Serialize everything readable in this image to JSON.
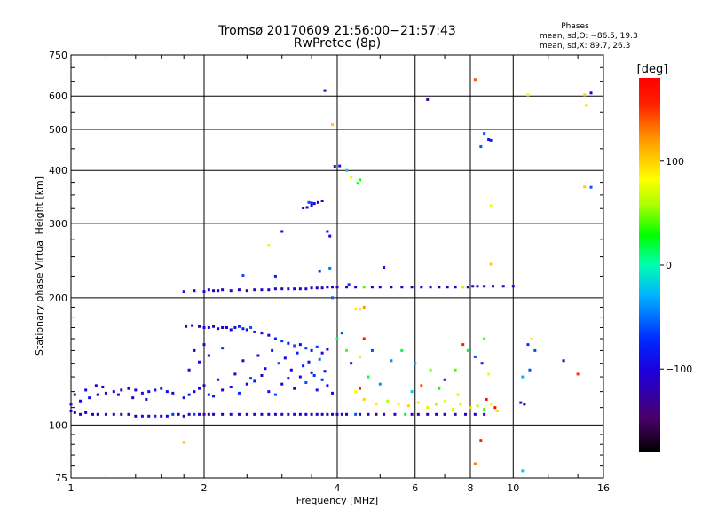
{
  "title_line1": "Tromsø 20170609 21:56:00−21:57:43",
  "title_line2": "RwPretec (8p)",
  "phases": {
    "title": "Phases",
    "line1": "mean, sd,O: −86.5, 19.3",
    "line2": "mean, sd,X:  89.7, 26.3"
  },
  "colorbar": {
    "unit_label": "[deg]",
    "ticks": [
      {
        "value": 100,
        "label": "100"
      },
      {
        "value": 0,
        "label": "0"
      },
      {
        "value": -100,
        "label": "−100"
      }
    ],
    "range": [
      -180,
      180
    ]
  },
  "chart_data": {
    "type": "scatter",
    "title": "Tromsø 20170609 21:56:00−21:57:43",
    "subtitle": "RwPretec (8p)",
    "xlabel": "Frequency [MHz]",
    "ylabel": "Stationary phase Virtual Height [km]",
    "xscale": "log",
    "yscale": "log",
    "xlim": [
      1,
      16
    ],
    "ylim": [
      75,
      750
    ],
    "xticks": [
      {
        "value": 1,
        "label": "1"
      },
      {
        "value": 2,
        "label": "2"
      },
      {
        "value": 4,
        "label": "4"
      },
      {
        "value": 6,
        "label": "6"
      },
      {
        "value": 8,
        "label": "8"
      },
      {
        "value": 10,
        "label": "10"
      },
      {
        "value": 16,
        "label": "16"
      }
    ],
    "yticks": [
      {
        "value": 75,
        "label": "75"
      },
      {
        "value": 100,
        "label": "100"
      },
      {
        "value": 200,
        "label": "200"
      },
      {
        "value": 300,
        "label": "300"
      },
      {
        "value": 400,
        "label": "400"
      },
      {
        "value": 500,
        "label": "500"
      },
      {
        "value": 600,
        "label": "600"
      },
      {
        "value": 750,
        "label": "750"
      }
    ],
    "grid": true,
    "color_variable": "phase [deg]",
    "points": [
      [
        1.0,
        108,
        -115
      ],
      [
        1.02,
        107,
        -118
      ],
      [
        1.05,
        106,
        -120
      ],
      [
        1.08,
        107,
        -110
      ],
      [
        1.12,
        106,
        -115
      ],
      [
        1.15,
        106,
        -118
      ],
      [
        1.2,
        106,
        -112
      ],
      [
        1.25,
        106,
        -120
      ],
      [
        1.3,
        106,
        -108
      ],
      [
        1.35,
        106,
        -115
      ],
      [
        1.4,
        105,
        -118
      ],
      [
        1.45,
        105,
        -90
      ],
      [
        1.5,
        105,
        -110
      ],
      [
        1.55,
        105,
        -75
      ],
      [
        1.6,
        105,
        -112
      ],
      [
        1.65,
        105,
        -100
      ],
      [
        1.7,
        106,
        -70
      ],
      [
        1.75,
        106,
        -120
      ],
      [
        1.8,
        105,
        -115
      ],
      [
        1.85,
        106,
        -110
      ],
      [
        1.9,
        106,
        -60
      ],
      [
        1.95,
        106,
        -118
      ],
      [
        2.0,
        106,
        -112
      ],
      [
        2.05,
        106,
        -120
      ],
      [
        2.1,
        106,
        -110
      ],
      [
        2.2,
        106,
        -116
      ],
      [
        2.3,
        106,
        -112
      ],
      [
        2.4,
        106,
        -120
      ],
      [
        2.5,
        106,
        -108
      ],
      [
        2.6,
        106,
        -115
      ],
      [
        2.7,
        106,
        -118
      ],
      [
        2.8,
        106,
        -110
      ],
      [
        2.9,
        106,
        -115
      ],
      [
        3.0,
        106,
        -112
      ],
      [
        3.1,
        106,
        -120
      ],
      [
        3.2,
        106,
        -108
      ],
      [
        3.3,
        106,
        -116
      ],
      [
        3.4,
        106,
        -110
      ],
      [
        3.5,
        106,
        -118
      ],
      [
        3.6,
        106,
        -112
      ],
      [
        3.7,
        106,
        -115
      ],
      [
        3.8,
        106,
        -140
      ],
      [
        3.9,
        106,
        -108
      ],
      [
        4.0,
        106,
        -118
      ],
      [
        4.1,
        106,
        -112
      ],
      [
        4.2,
        106,
        -116
      ],
      [
        4.4,
        106,
        -60
      ],
      [
        4.5,
        106,
        -120
      ],
      [
        4.7,
        106,
        -110
      ],
      [
        4.9,
        106,
        -150
      ],
      [
        5.1,
        106,
        -115
      ],
      [
        5.4,
        106,
        -110
      ],
      [
        5.7,
        106,
        20
      ],
      [
        5.9,
        106,
        -118
      ],
      [
        6.1,
        106,
        -112
      ],
      [
        6.4,
        106,
        -116
      ],
      [
        6.7,
        106,
        -110
      ],
      [
        7.0,
        106,
        -118
      ],
      [
        7.4,
        106,
        -112
      ],
      [
        7.8,
        106,
        -116
      ],
      [
        8.2,
        106,
        -110
      ],
      [
        8.6,
        106,
        -118
      ],
      [
        1.0,
        112,
        -95
      ],
      [
        1.05,
        114,
        -100
      ],
      [
        1.1,
        116,
        -85
      ],
      [
        1.15,
        118,
        -110
      ],
      [
        1.2,
        119,
        -105
      ],
      [
        1.25,
        120,
        -100
      ],
      [
        1.3,
        121,
        -95
      ],
      [
        1.35,
        122,
        -108
      ],
      [
        1.4,
        121,
        -100
      ],
      [
        1.45,
        119,
        -90
      ],
      [
        1.5,
        120,
        -105
      ],
      [
        1.55,
        121,
        -80
      ],
      [
        1.6,
        122,
        -70
      ],
      [
        1.65,
        120,
        -95
      ],
      [
        1.7,
        119,
        -100
      ],
      [
        1.02,
        118,
        -105
      ],
      [
        1.08,
        121,
        -98
      ],
      [
        1.14,
        124,
        -110
      ],
      [
        1.18,
        123,
        -115
      ],
      [
        1.28,
        118,
        -108
      ],
      [
        1.38,
        116,
        -102
      ],
      [
        1.48,
        115,
        -110
      ],
      [
        1.8,
        116,
        -90
      ],
      [
        1.85,
        118,
        -80
      ],
      [
        1.9,
        120,
        -100
      ],
      [
        1.95,
        122,
        -95
      ],
      [
        2.0,
        124,
        -110
      ],
      [
        2.05,
        118,
        -75
      ],
      [
        2.1,
        117,
        -88
      ],
      [
        2.2,
        121,
        -102
      ],
      [
        2.3,
        123,
        -95
      ],
      [
        2.4,
        119,
        -70
      ],
      [
        2.5,
        125,
        -100
      ],
      [
        2.6,
        127,
        -80
      ],
      [
        2.7,
        131,
        -112
      ],
      [
        2.8,
        120,
        -95
      ],
      [
        2.9,
        118,
        -60
      ],
      [
        3.0,
        125,
        -100
      ],
      [
        3.1,
        129,
        -85
      ],
      [
        3.2,
        122,
        -110
      ],
      [
        3.3,
        130,
        -95
      ],
      [
        3.4,
        126,
        -60
      ],
      [
        3.5,
        133,
        -100
      ],
      [
        3.6,
        121,
        -88
      ],
      [
        3.7,
        128,
        -70
      ],
      [
        3.8,
        124,
        -105
      ],
      [
        3.9,
        119,
        -92
      ],
      [
        2.15,
        128,
        -80
      ],
      [
        2.35,
        132,
        -100
      ],
      [
        2.55,
        129,
        -65
      ],
      [
        2.75,
        136,
        -95
      ],
      [
        2.95,
        140,
        -60
      ],
      [
        3.15,
        135,
        -100
      ],
      [
        3.35,
        138,
        -85
      ],
      [
        3.55,
        131,
        -70
      ],
      [
        3.75,
        134,
        -100
      ],
      [
        2.45,
        142,
        -110
      ],
      [
        2.65,
        146,
        -90
      ],
      [
        2.85,
        150,
        -80
      ],
      [
        3.05,
        144,
        -100
      ],
      [
        3.25,
        148,
        -75
      ],
      [
        3.45,
        141,
        -95
      ],
      [
        3.65,
        143,
        -50
      ],
      [
        1.85,
        135,
        -100
      ],
      [
        1.95,
        141,
        -90
      ],
      [
        2.05,
        146,
        -110
      ],
      [
        1.9,
        150,
        -105
      ],
      [
        2.0,
        155,
        -95
      ],
      [
        2.2,
        152,
        -70
      ],
      [
        1.82,
        171,
        -115
      ],
      [
        1.88,
        172,
        -110
      ],
      [
        1.95,
        171,
        -118
      ],
      [
        2.0,
        170,
        -100
      ],
      [
        2.05,
        170,
        -112
      ],
      [
        2.1,
        171,
        -120
      ],
      [
        2.15,
        169,
        -108
      ],
      [
        2.2,
        170,
        -115
      ],
      [
        2.25,
        170,
        -110
      ],
      [
        2.3,
        168,
        -100
      ],
      [
        2.35,
        170,
        -90
      ],
      [
        2.4,
        171,
        -70
      ],
      [
        2.45,
        169,
        -80
      ],
      [
        2.5,
        168,
        -95
      ],
      [
        2.55,
        170,
        -60
      ],
      [
        2.6,
        166,
        -75
      ],
      [
        2.7,
        165,
        -85
      ],
      [
        2.8,
        163,
        -100
      ],
      [
        2.9,
        160,
        -80
      ],
      [
        3.0,
        158,
        -70
      ],
      [
        3.1,
        156,
        -90
      ],
      [
        3.2,
        154,
        -60
      ],
      [
        3.3,
        155,
        -95
      ],
      [
        3.4,
        152,
        -70
      ],
      [
        3.5,
        150,
        -80
      ],
      [
        3.6,
        153,
        -65
      ],
      [
        3.7,
        148,
        -90
      ],
      [
        3.8,
        151,
        -100
      ],
      [
        1.8,
        207,
        -90
      ],
      [
        1.9,
        208,
        -100
      ],
      [
        2.0,
        207,
        -108
      ],
      [
        2.05,
        209,
        -112
      ],
      [
        2.1,
        208,
        -115
      ],
      [
        2.15,
        208,
        -118
      ],
      [
        2.2,
        209,
        -110
      ],
      [
        2.3,
        208,
        -120
      ],
      [
        2.4,
        209,
        -112
      ],
      [
        2.5,
        208,
        -115
      ],
      [
        2.6,
        209,
        -118
      ],
      [
        2.7,
        209,
        -110
      ],
      [
        2.8,
        209,
        -116
      ],
      [
        2.9,
        210,
        -112
      ],
      [
        3.0,
        210,
        -118
      ],
      [
        3.1,
        210,
        -110
      ],
      [
        3.2,
        210,
        -115
      ],
      [
        3.3,
        210,
        -120
      ],
      [
        3.4,
        210,
        -108
      ],
      [
        3.5,
        211,
        -116
      ],
      [
        3.6,
        211,
        -112
      ],
      [
        3.7,
        211,
        -118
      ],
      [
        3.8,
        212,
        -110
      ],
      [
        3.9,
        212,
        -100
      ],
      [
        4.0,
        212,
        -115
      ],
      [
        4.2,
        212,
        -118
      ],
      [
        4.4,
        212,
        -110
      ],
      [
        4.6,
        212,
        40
      ],
      [
        4.8,
        212,
        -112
      ],
      [
        5.0,
        212,
        -100
      ],
      [
        5.3,
        212,
        -118
      ],
      [
        5.6,
        212,
        -110
      ],
      [
        5.9,
        212,
        -115
      ],
      [
        6.2,
        212,
        -108
      ],
      [
        6.5,
        212,
        -120
      ],
      [
        6.8,
        212,
        -112
      ],
      [
        7.1,
        212,
        -116
      ],
      [
        7.4,
        212,
        -110
      ],
      [
        7.7,
        212,
        60
      ],
      [
        7.9,
        212,
        -118
      ],
      [
        8.1,
        213,
        -112
      ],
      [
        8.3,
        213,
        -110
      ],
      [
        8.6,
        213,
        -120
      ],
      [
        9.0,
        213,
        -115
      ],
      [
        9.5,
        213,
        -112
      ],
      [
        10.0,
        213,
        -118
      ],
      [
        2.45,
        226,
        -60
      ],
      [
        2.9,
        225,
        -80
      ],
      [
        3.65,
        231,
        -70
      ],
      [
        5.1,
        236,
        -90
      ],
      [
        3.9,
        200,
        -55
      ],
      [
        3.35,
        326,
        -110
      ],
      [
        3.42,
        327,
        -100
      ],
      [
        3.5,
        331,
        -105
      ],
      [
        3.55,
        334,
        -112
      ],
      [
        3.62,
        336,
        -108
      ],
      [
        3.7,
        339,
        -95
      ],
      [
        3.45,
        336,
        -60
      ],
      [
        3.5,
        335,
        -70
      ],
      [
        3.8,
        287,
        -95
      ],
      [
        3.85,
        280,
        -100
      ],
      [
        3.95,
        409,
        -110
      ],
      [
        4.05,
        410,
        -90
      ],
      [
        4.45,
        373,
        20
      ],
      [
        4.5,
        380,
        30
      ],
      [
        4.3,
        385,
        90
      ],
      [
        4.2,
        400,
        -20
      ],
      [
        3.9,
        513,
        100
      ],
      [
        3.75,
        618,
        -120
      ],
      [
        2.8,
        266,
        90
      ],
      [
        3.0,
        287,
        -110
      ],
      [
        8.2,
        656,
        140
      ],
      [
        6.4,
        588,
        -130
      ],
      [
        8.6,
        489,
        -60
      ],
      [
        8.45,
        455,
        -60
      ],
      [
        8.8,
        473,
        -80
      ],
      [
        8.9,
        471,
        -85
      ],
      [
        8.9,
        330,
        80
      ],
      [
        8.9,
        240,
        100
      ],
      [
        10.8,
        604,
        90
      ],
      [
        14.5,
        604,
        100
      ],
      [
        15.0,
        610,
        -110
      ],
      [
        14.6,
        570,
        90
      ],
      [
        15.0,
        365,
        -60
      ],
      [
        14.5,
        366,
        100
      ],
      [
        4.0,
        160,
        10
      ],
      [
        4.2,
        150,
        40
      ],
      [
        4.4,
        188,
        90
      ],
      [
        4.5,
        188,
        100
      ],
      [
        4.6,
        190,
        120
      ],
      [
        4.3,
        140,
        -80
      ],
      [
        4.5,
        145,
        60
      ],
      [
        4.7,
        130,
        20
      ],
      [
        4.4,
        120,
        80
      ],
      [
        4.6,
        115,
        100
      ],
      [
        4.9,
        112,
        90
      ],
      [
        5.2,
        114,
        60
      ],
      [
        5.5,
        112,
        80
      ],
      [
        5.8,
        111,
        100
      ],
      [
        6.1,
        113,
        90
      ],
      [
        6.4,
        110,
        70
      ],
      [
        6.7,
        112,
        60
      ],
      [
        7.0,
        114,
        80
      ],
      [
        7.3,
        109,
        70
      ],
      [
        7.6,
        112,
        90
      ],
      [
        8.0,
        110,
        100
      ],
      [
        8.3,
        111,
        60
      ],
      [
        8.6,
        109,
        40
      ],
      [
        8.9,
        112,
        80
      ],
      [
        9.2,
        108,
        60
      ],
      [
        4.1,
        165,
        -60
      ],
      [
        4.8,
        150,
        -60
      ],
      [
        5.3,
        142,
        -40
      ],
      [
        5.6,
        150,
        20
      ],
      [
        6.0,
        140,
        -30
      ],
      [
        6.5,
        135,
        50
      ],
      [
        7.0,
        128,
        -70
      ],
      [
        7.4,
        135,
        40
      ],
      [
        7.9,
        150,
        20
      ],
      [
        8.2,
        145,
        -60
      ],
      [
        8.5,
        140,
        -80
      ],
      [
        8.8,
        132,
        80
      ],
      [
        8.6,
        160,
        40
      ],
      [
        5.0,
        125,
        -40
      ],
      [
        5.9,
        120,
        -20
      ],
      [
        6.8,
        122,
        30
      ],
      [
        7.5,
        118,
        70
      ],
      [
        10.4,
        113,
        -80
      ],
      [
        10.6,
        112,
        -110
      ],
      [
        10.8,
        155,
        -70
      ],
      [
        11.0,
        160,
        90
      ],
      [
        11.2,
        150,
        -60
      ],
      [
        13.0,
        142,
        -110
      ],
      [
        14.0,
        132,
        150
      ],
      [
        10.9,
        135,
        -60
      ],
      [
        10.5,
        130,
        -30
      ],
      [
        7.7,
        155,
        160
      ],
      [
        4.6,
        160,
        170
      ],
      [
        8.7,
        115,
        170
      ],
      [
        4.5,
        122,
        160
      ],
      [
        6.2,
        124,
        140
      ],
      [
        9.1,
        110,
        175
      ],
      [
        8.2,
        81,
        130
      ],
      [
        1.8,
        91,
        110
      ],
      [
        8.45,
        92,
        160
      ],
      [
        10.5,
        78,
        -20
      ],
      [
        3.85,
        235,
        -50
      ],
      [
        4.25,
        215,
        -70
      ]
    ]
  }
}
